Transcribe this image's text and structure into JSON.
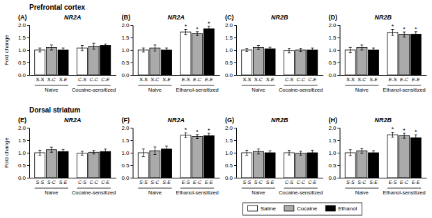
{
  "chart_data": [
    {
      "type": "bar",
      "title": "NR2A",
      "panel_label": "(A)",
      "section": "Prefrontal cortex",
      "ylabel": "Fold change",
      "legend": "bottom",
      "categories": [
        "Naive",
        "Cocaine-sensitized"
      ],
      "series": [
        {
          "name": "Saline",
          "color": "white",
          "values": [
            1.0,
            1.08
          ],
          "errors": [
            0.08,
            0.1
          ],
          "bar_ticks": [
            "S-S",
            "C-S"
          ],
          "stars": [
            null,
            null
          ]
        },
        {
          "name": "Cocaine",
          "color": "#aaaaaa",
          "values": [
            1.1,
            1.15
          ],
          "errors": [
            0.1,
            0.12
          ],
          "bar_ticks": [
            "S-C",
            "C-C"
          ],
          "stars": [
            null,
            null
          ]
        },
        {
          "name": "Ethanol",
          "color": "black",
          "values": [
            1.0,
            1.18
          ],
          "errors": [
            0.08,
            0.06
          ],
          "bar_ticks": [
            "S-E",
            "C-E"
          ],
          "stars": [
            null,
            null
          ]
        }
      ],
      "ylim": [
        0.0,
        2.0
      ],
      "yticks": [
        {
          "value": 0.0,
          "label": "0.0"
        },
        0.5,
        {
          "value": 1.0,
          "label": "1.0"
        },
        1.5,
        {
          "value": 2.0,
          "label": "2.0"
        }
      ],
      "grid": false
    },
    {
      "type": "bar",
      "title": "NR2A",
      "panel_label": "(B)",
      "categories": [
        "Naive",
        "Ethanol-sensitized"
      ],
      "series": [
        {
          "name": "Saline",
          "color": "white",
          "values": [
            1.0,
            1.72
          ],
          "errors": [
            0.08,
            0.1
          ],
          "bar_ticks": [
            "S-S",
            "E-S"
          ],
          "stars": [
            null,
            "*"
          ]
        },
        {
          "name": "Cocaine",
          "color": "#aaaaaa",
          "values": [
            1.08,
            1.65
          ],
          "errors": [
            0.12,
            0.08
          ],
          "bar_ticks": [
            "S-C",
            "E-C"
          ],
          "stars": [
            null,
            "*"
          ]
        },
        {
          "name": "Ethanol",
          "color": "black",
          "values": [
            1.0,
            1.85
          ],
          "errors": [
            0.08,
            0.1
          ],
          "bar_ticks": [
            "S-E",
            "E-E"
          ],
          "stars": [
            null,
            "*"
          ]
        }
      ],
      "ylim": [
        0.0,
        2.0
      ],
      "yticks": [
        {
          "value": 0.0,
          "label": "0.0"
        },
        0.5,
        {
          "value": 1.0,
          "label": "1.0"
        },
        1.5,
        {
          "value": 2.0,
          "label": "2.0"
        }
      ],
      "grid": false
    },
    {
      "type": "bar",
      "title": "NR2B",
      "panel_label": "(C)",
      "categories": [
        "Naive",
        "Cocaine-sensitized"
      ],
      "series": [
        {
          "name": "Saline",
          "color": "white",
          "values": [
            1.0,
            0.98
          ],
          "errors": [
            0.07,
            0.09
          ],
          "bar_ticks": [
            "S-S",
            "C-S"
          ],
          "stars": [
            null,
            null
          ]
        },
        {
          "name": "Cocaine",
          "color": "#aaaaaa",
          "values": [
            1.1,
            1.0
          ],
          "errors": [
            0.08,
            0.07
          ],
          "bar_ticks": [
            "S-C",
            "C-C"
          ],
          "stars": [
            null,
            null
          ]
        },
        {
          "name": "Ethanol",
          "color": "black",
          "values": [
            1.05,
            1.0
          ],
          "errors": [
            0.06,
            0.08
          ],
          "bar_ticks": [
            "S-E",
            "C-E"
          ],
          "stars": [
            null,
            null
          ]
        }
      ],
      "ylim": [
        0.0,
        2.0
      ],
      "yticks": [
        {
          "value": 0.0,
          "label": "0.0"
        },
        0.5,
        {
          "value": 1.0,
          "label": "1.0"
        },
        1.5,
        {
          "value": 2.0,
          "label": "2.0"
        }
      ],
      "grid": false
    },
    {
      "type": "bar",
      "title": "NR2B",
      "panel_label": "(D)",
      "categories": [
        "Naive",
        "Ethanol-sensitized"
      ],
      "series": [
        {
          "name": "Saline",
          "color": "white",
          "values": [
            1.0,
            1.7
          ],
          "errors": [
            0.1,
            0.12
          ],
          "bar_ticks": [
            "S-S",
            "E-S"
          ],
          "stars": [
            null,
            "*"
          ]
        },
        {
          "name": "Cocaine",
          "color": "#aaaaaa",
          "values": [
            1.1,
            1.62
          ],
          "errors": [
            0.1,
            0.1
          ],
          "bar_ticks": [
            "S-C",
            "E-C"
          ],
          "stars": [
            null,
            "*"
          ]
        },
        {
          "name": "Ethanol",
          "color": "black",
          "values": [
            1.0,
            1.63
          ],
          "errors": [
            0.08,
            0.1
          ],
          "bar_ticks": [
            "S-E",
            "E-E"
          ],
          "stars": [
            null,
            "*"
          ]
        }
      ],
      "ylim": [
        0.0,
        2.0
      ],
      "yticks": [
        {
          "value": 0.0,
          "label": "0.0"
        },
        0.5,
        {
          "value": 1.0,
          "label": "1.0"
        },
        1.5,
        {
          "value": 2.0,
          "label": "2.0"
        }
      ],
      "grid": false
    },
    {
      "type": "bar",
      "title": "NR2A",
      "panel_label": "(E)",
      "section": "Dorsal striatum",
      "ylabel": "Fold change",
      "categories": [
        "Naive",
        "Cocaine-sensitized"
      ],
      "series": [
        {
          "name": "Saline",
          "color": "white",
          "values": [
            1.0,
            0.98
          ],
          "errors": [
            0.1,
            0.08
          ],
          "bar_ticks": [
            "S-S",
            "C-S"
          ],
          "stars": [
            null,
            null
          ]
        },
        {
          "name": "Cocaine",
          "color": "#aaaaaa",
          "values": [
            1.12,
            1.02
          ],
          "errors": [
            0.1,
            0.07
          ],
          "bar_ticks": [
            "S-C",
            "C-C"
          ],
          "stars": [
            null,
            null
          ]
        },
        {
          "name": "Ethanol",
          "color": "black",
          "values": [
            1.05,
            1.05
          ],
          "errors": [
            0.08,
            0.1
          ],
          "bar_ticks": [
            "S-E",
            "C-E"
          ],
          "stars": [
            null,
            null
          ]
        }
      ],
      "ylim": [
        0.0,
        2.0
      ],
      "yticks": [
        {
          "value": 0.0,
          "label": "0.0"
        },
        0.5,
        {
          "value": 1.0,
          "label": "1.0"
        },
        1.5,
        {
          "value": 2.0,
          "label": "2.0"
        }
      ],
      "grid": false
    },
    {
      "type": "bar",
      "title": "NR2A",
      "panel_label": "(F)",
      "categories": [
        "Naive",
        "Ethanol-sensitized"
      ],
      "series": [
        {
          "name": "Saline",
          "color": "white",
          "values": [
            1.0,
            1.7
          ],
          "errors": [
            0.15,
            0.1
          ],
          "bar_ticks": [
            "S-S",
            "E-S"
          ],
          "stars": [
            null,
            "*"
          ]
        },
        {
          "name": "Cocaine",
          "color": "#aaaaaa",
          "values": [
            1.08,
            1.65
          ],
          "errors": [
            0.15,
            0.08
          ],
          "bar_ticks": [
            "S-C",
            "E-C"
          ],
          "stars": [
            null,
            "*"
          ]
        },
        {
          "name": "Ethanol",
          "color": "black",
          "values": [
            1.15,
            1.68
          ],
          "errors": [
            0.12,
            0.1
          ],
          "bar_ticks": [
            "S-E",
            "E-E"
          ],
          "stars": [
            null,
            "*"
          ]
        }
      ],
      "ylim": [
        0.0,
        2.0
      ],
      "yticks": [
        {
          "value": 0.0,
          "label": "0.0"
        },
        0.5,
        {
          "value": 1.0,
          "label": "1.0"
        },
        1.5,
        {
          "value": 2.0,
          "label": "2.0"
        }
      ],
      "grid": false
    },
    {
      "type": "bar",
      "title": "NR2B",
      "panel_label": "(G)",
      "categories": [
        "Naive",
        "Cocaine-sensitized"
      ],
      "series": [
        {
          "name": "Saline",
          "color": "white",
          "values": [
            1.0,
            1.0
          ],
          "errors": [
            0.1,
            0.09
          ],
          "bar_ticks": [
            "S-S",
            "C-S"
          ],
          "stars": [
            null,
            null
          ]
        },
        {
          "name": "Cocaine",
          "color": "#aaaaaa",
          "values": [
            1.05,
            0.98
          ],
          "errors": [
            0.1,
            0.08
          ],
          "bar_ticks": [
            "S-C",
            "C-C"
          ],
          "stars": [
            null,
            null
          ]
        },
        {
          "name": "Ethanol",
          "color": "black",
          "values": [
            1.0,
            1.0
          ],
          "errors": [
            0.08,
            0.1
          ],
          "bar_ticks": [
            "S-E",
            "C-E"
          ],
          "stars": [
            null,
            null
          ]
        }
      ],
      "ylim": [
        0.0,
        2.0
      ],
      "yticks": [
        {
          "value": 0.0,
          "label": "0.0"
        },
        0.5,
        {
          "value": 1.0,
          "label": "1.0"
        },
        1.5,
        {
          "value": 2.0,
          "label": "2.0"
        }
      ],
      "grid": false
    },
    {
      "type": "bar",
      "title": "NR2B",
      "panel_label": "(H)",
      "categories": [
        "Naive",
        "Ethanol-sensitized"
      ],
      "series": [
        {
          "name": "Saline",
          "color": "white",
          "values": [
            1.0,
            1.72
          ],
          "errors": [
            0.12,
            0.1
          ],
          "bar_ticks": [
            "S-S",
            "E-S"
          ],
          "stars": [
            null,
            "*"
          ]
        },
        {
          "name": "Cocaine",
          "color": "#aaaaaa",
          "values": [
            1.08,
            1.68
          ],
          "errors": [
            0.1,
            0.1
          ],
          "bar_ticks": [
            "S-C",
            "E-C"
          ],
          "stars": [
            null,
            "*"
          ]
        },
        {
          "name": "Ethanol",
          "color": "black",
          "values": [
            1.0,
            1.6
          ],
          "errors": [
            0.08,
            0.12
          ],
          "bar_ticks": [
            "S-E",
            "E-E"
          ],
          "stars": [
            null,
            "*"
          ]
        }
      ],
      "ylim": [
        0.0,
        2.0
      ],
      "yticks": [
        {
          "value": 0.0,
          "label": "0.0"
        },
        0.5,
        {
          "value": 1.0,
          "label": "1.0"
        },
        1.5,
        {
          "value": 2.0,
          "label": "2.0"
        }
      ],
      "grid": false
    }
  ]
}
